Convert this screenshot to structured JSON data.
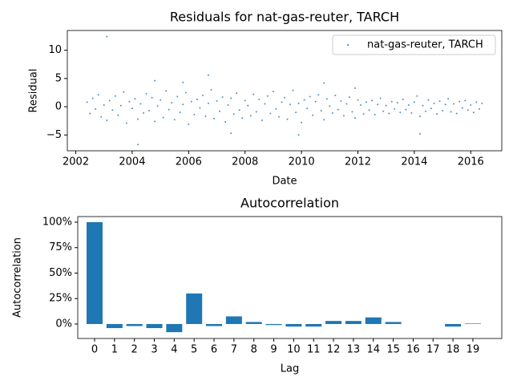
{
  "chart_data": [
    {
      "type": "scatter",
      "title": "Residuals for nat-gas-reuter, TARCH",
      "x_label": "Date",
      "y_label": "Residual",
      "xlim": [
        2001.7,
        2017.1
      ],
      "ylim": [
        -7.8,
        13.5
      ],
      "xticks": [
        2002,
        2004,
        2006,
        2008,
        2010,
        2012,
        2014,
        2016
      ],
      "yticks": [
        {
          "value": -5,
          "label": "−5"
        },
        0,
        5,
        10
      ],
      "legend": "upper right",
      "series": [
        {
          "name": "nat-gas-reuter, TARCH",
          "color": "#1f77b4",
          "x": [
            2002.4,
            2002.5,
            2002.6,
            2002.7,
            2002.8,
            2002.9,
            2003.0,
            2003.1,
            2003.2,
            2003.3,
            2003.4,
            2003.5,
            2003.6,
            2003.7,
            2003.8,
            2003.9,
            2004.0,
            2004.1,
            2004.2,
            2004.3,
            2004.4,
            2004.5,
            2004.6,
            2004.7,
            2004.8,
            2004.9,
            2005.0,
            2005.1,
            2005.2,
            2005.3,
            2005.4,
            2005.5,
            2005.6,
            2005.7,
            2005.8,
            2005.9,
            2006.0,
            2006.1,
            2006.2,
            2006.3,
            2006.4,
            2006.5,
            2006.6,
            2006.7,
            2006.8,
            2006.9,
            2007.0,
            2007.1,
            2007.2,
            2007.3,
            2007.4,
            2007.5,
            2007.6,
            2007.7,
            2007.8,
            2007.9,
            2008.0,
            2008.1,
            2008.2,
            2008.3,
            2008.4,
            2008.5,
            2008.6,
            2008.7,
            2008.8,
            2008.9,
            2009.0,
            2009.1,
            2009.2,
            2009.3,
            2009.4,
            2009.5,
            2009.6,
            2009.7,
            2009.8,
            2009.9,
            2010.0,
            2010.1,
            2010.2,
            2010.3,
            2010.4,
            2010.5,
            2010.6,
            2010.7,
            2010.8,
            2010.9,
            2011.0,
            2011.1,
            2011.2,
            2011.3,
            2011.4,
            2011.5,
            2011.6,
            2011.7,
            2011.8,
            2011.9,
            2012.0,
            2012.1,
            2012.2,
            2012.3,
            2012.4,
            2012.5,
            2012.6,
            2012.7,
            2012.8,
            2012.9,
            2013.0,
            2013.1,
            2013.2,
            2013.3,
            2013.4,
            2013.5,
            2013.6,
            2013.7,
            2013.8,
            2013.9,
            2014.0,
            2014.1,
            2014.2,
            2014.3,
            2014.4,
            2014.5,
            2014.6,
            2014.7,
            2014.8,
            2014.9,
            2015.0,
            2015.1,
            2015.2,
            2015.3,
            2015.4,
            2015.5,
            2015.6,
            2015.7,
            2015.8,
            2015.9,
            2016.0,
            2016.1,
            2016.2,
            2016.3,
            2016.4,
            2003.1,
            2004.2,
            2006.7,
            2005.8,
            2004.8,
            2009.9,
            2010.8,
            2014.2,
            2007.5,
            2011.9
          ],
          "values": [
            0.8,
            -1.2,
            1.5,
            -0.4,
            2.1,
            -1.8,
            0.3,
            -2.4,
            1.1,
            -0.6,
            1.9,
            -1.5,
            0.2,
            2.6,
            -2.9,
            0.9,
            -0.3,
            1.4,
            -2.2,
            0.5,
            -1.1,
            2.3,
            -0.7,
            1.6,
            -2.6,
            0.1,
            1.2,
            -1.9,
            2.8,
            -0.5,
            0.7,
            -2.3,
            1.8,
            -1.0,
            0.4,
            2.5,
            -3.1,
            0.9,
            -1.4,
            1.3,
            -0.2,
            2.0,
            -1.7,
            0.6,
            3.0,
            -2.1,
            1.0,
            -0.8,
            1.7,
            -2.7,
            0.3,
            1.5,
            -1.3,
            2.4,
            -0.6,
            -2.0,
            1.1,
            0.2,
            -1.6,
            2.2,
            -0.9,
            1.3,
            -2.4,
            0.5,
            1.9,
            -1.2,
            2.7,
            -0.4,
            -1.8,
            0.8,
            1.6,
            -2.2,
            0.4,
            2.9,
            -1.0,
            0.6,
            -2.8,
            1.2,
            -0.3,
            1.8,
            -1.5,
            0.9,
            2.1,
            -0.7,
            -2.3,
            1.4,
            0.1,
            -1.1,
            2.0,
            -0.5,
            1.0,
            -1.6,
            0.5,
            1.7,
            -0.9,
            -2.0,
            1.2,
            0.3,
            -1.3,
            0.8,
            -0.6,
            1.1,
            -1.4,
            0.4,
            1.5,
            -0.8,
            0.2,
            -1.2,
            0.9,
            -0.4,
            0.7,
            -1.0,
            1.3,
            -0.5,
            0.3,
            -1.1,
            0.8,
            1.9,
            -1.7,
            0.2,
            -0.8,
            1.2,
            -0.3,
            0.6,
            -1.3,
            1.0,
            -0.7,
            0.4,
            1.4,
            -0.9,
            0.5,
            -1.2,
            0.9,
            -0.2,
            1.1,
            -0.6,
            0.3,
            -1.0,
            0.8,
            -0.4,
            0.6,
            12.4,
            -6.7,
            5.6,
            4.3,
            4.6,
            -5.0,
            4.2,
            -4.8,
            -4.7,
            3.3
          ]
        }
      ]
    },
    {
      "type": "bar",
      "title": "Autocorrelation",
      "x_label": "Lag",
      "y_label": "Autocorrelation",
      "categories": [
        "0",
        "1",
        "2",
        "3",
        "4",
        "5",
        "6",
        "7",
        "8",
        "9",
        "10",
        "11",
        "12",
        "13",
        "14",
        "15",
        "16",
        "17",
        "18",
        "19"
      ],
      "values": [
        100,
        -4,
        -2,
        -4,
        -8,
        30,
        -2,
        7.5,
        2,
        -1,
        -2.5,
        -2.5,
        3,
        3,
        6.5,
        2,
        0,
        0,
        -2.5,
        0.5
      ],
      "color": "#1f77b4",
      "ylim": [
        -14.2,
        105.5
      ],
      "yticks": [
        {
          "value": 0,
          "label": "0%"
        },
        {
          "value": 25,
          "label": "25%"
        },
        {
          "value": 50,
          "label": "50%"
        },
        {
          "value": 75,
          "label": "75%"
        },
        {
          "value": 100,
          "label": "100%"
        }
      ]
    }
  ]
}
